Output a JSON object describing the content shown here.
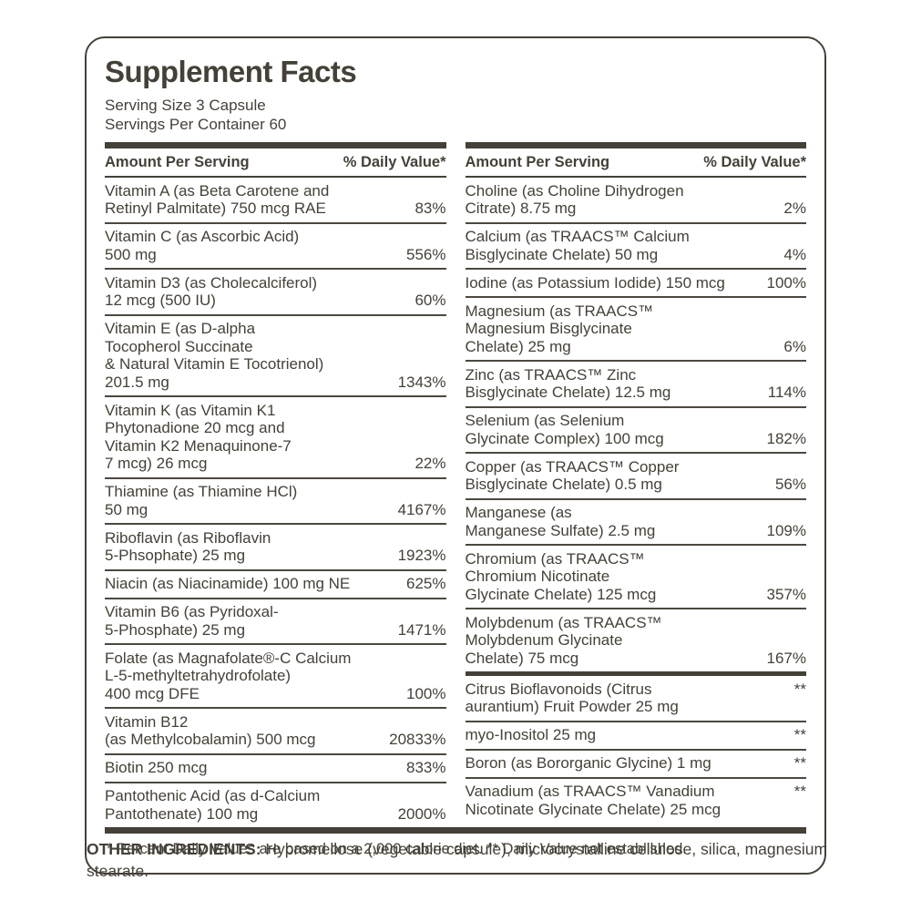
{
  "colors": {
    "ink": "#454138",
    "rule": "#4c483f"
  },
  "label": {
    "title": "Supplement Facts",
    "serving_size": "Serving Size 3 Capsule",
    "servings_per_container": "Servings Per Container 60",
    "column_header": {
      "amount": "Amount Per Serving",
      "daily_value": "% Daily Value*"
    },
    "columns": [
      {
        "rows": [
          {
            "lines": [
              "Vitamin A (as Beta Carotene and",
              "Retinyl Palmitate) 750 mcg RAE"
            ],
            "value": "83%"
          },
          {
            "lines": [
              "Vitamin C (as Ascorbic Acid)",
              "500 mg"
            ],
            "value": "556%"
          },
          {
            "lines": [
              "Vitamin D3 (as Cholecalciferol)",
              "12 mcg (500 IU)"
            ],
            "value": "60%"
          },
          {
            "lines": [
              "Vitamin E (as D-alpha",
              "Tocopherol Succinate",
              "& Natural Vitamin E Tocotrienol)",
              "201.5 mg"
            ],
            "value": "1343%"
          },
          {
            "lines": [
              "Vitamin K (as Vitamin K1",
              "Phytonadione 20 mcg and",
              "Vitamin K2 Menaquinone-7",
              "7 mcg) 26 mcg"
            ],
            "value": "22%"
          },
          {
            "lines": [
              "Thiamine (as Thiamine HCl)",
              "50 mg"
            ],
            "value": "4167%"
          },
          {
            "lines": [
              "Riboflavin (as Riboflavin",
              "5-Phsophate) 25 mg"
            ],
            "value": "1923%"
          },
          {
            "lines": [
              "Niacin (as Niacinamide) 100 mg NE"
            ],
            "value": "625%"
          },
          {
            "lines": [
              "Vitamin B6 (as Pyridoxal-",
              "5-Phosphate) 25 mg"
            ],
            "value": "1471%"
          },
          {
            "lines": [
              "Folate (as Magnafolate®-C Calcium",
              "L-5-methyltetrahydrofolate)",
              "400 mcg DFE"
            ],
            "value": "100%"
          },
          {
            "lines": [
              "Vitamin B12",
              "(as Methylcobalamin) 500 mcg"
            ],
            "value": "20833%"
          },
          {
            "lines": [
              "Biotin 250 mcg"
            ],
            "value": "833%"
          },
          {
            "lines": [
              "Pantothenic Acid (as d-Calcium",
              "Pantothenate) 100 mg"
            ],
            "value": "2000%"
          }
        ]
      },
      {
        "rows": [
          {
            "lines": [
              "Choline (as Choline Dihydrogen",
              "Citrate) 8.75 mg"
            ],
            "value": "2%"
          },
          {
            "lines": [
              "Calcium (as TRAACS™  Calcium",
              "Bisglycinate Chelate) 50 mg"
            ],
            "value": "4%"
          },
          {
            "lines": [
              "Iodine (as Potassium Iodide) 150 mcg"
            ],
            "value": "100%"
          },
          {
            "lines": [
              "Magnesium (as TRAACS™",
              "Magnesium Bisglycinate",
              "Chelate) 25 mg"
            ],
            "value": "6%"
          },
          {
            "lines": [
              "Zinc (as TRAACS™ Zinc",
              "Bisglycinate Chelate) 12.5 mg"
            ],
            "value": "114%"
          },
          {
            "lines": [
              "Selenium (as Selenium",
              "Glycinate Complex) 100 mcg"
            ],
            "value": "182%"
          },
          {
            "lines": [
              "Copper (as TRAACS™ Copper",
              "Bisglycinate Chelate) 0.5 mg"
            ],
            "value": "56%"
          },
          {
            "lines": [
              "Manganese (as",
              "Manganese Sulfate) 2.5 mg"
            ],
            "value": "109%"
          },
          {
            "lines": [
              "Chromium (as TRAACS™",
              "Chromium Nicotinate",
              "Glycinate Chelate) 125 mcg"
            ],
            "value": "357%"
          },
          {
            "lines": [
              "Molybdenum (as TRAACS™",
              "Molybdenum Glycinate",
              "Chelate) 75 mcg"
            ],
            "value": "167%"
          },
          {
            "lines": [
              "Citrus Bioflavonoids (Citrus",
              "aurantium) Fruit Powder 25 mg"
            ],
            "value": "**",
            "divider_before": true
          },
          {
            "lines": [
              "myo-Inositol 25 mg"
            ],
            "value": "**"
          },
          {
            "lines": [
              "Boron (as Bororganic Glycine) 1 mg"
            ],
            "value": "**"
          },
          {
            "lines": [
              "Vanadium (as TRAACS™ Vanadium",
              "Nicotinate Glycinate Chelate) 25 mcg"
            ],
            "value": "**"
          }
        ]
      }
    ],
    "footnote": "* Percent Daily Values are based on a 2,000 calorie diet. ** Daily Value not established."
  },
  "other_ingredients": {
    "heading": "OTHER INGREDIENTS:",
    "text": " Hypromellose (vegetable capsule), microcrystalline cellulose, silica, magnesium stearate."
  }
}
